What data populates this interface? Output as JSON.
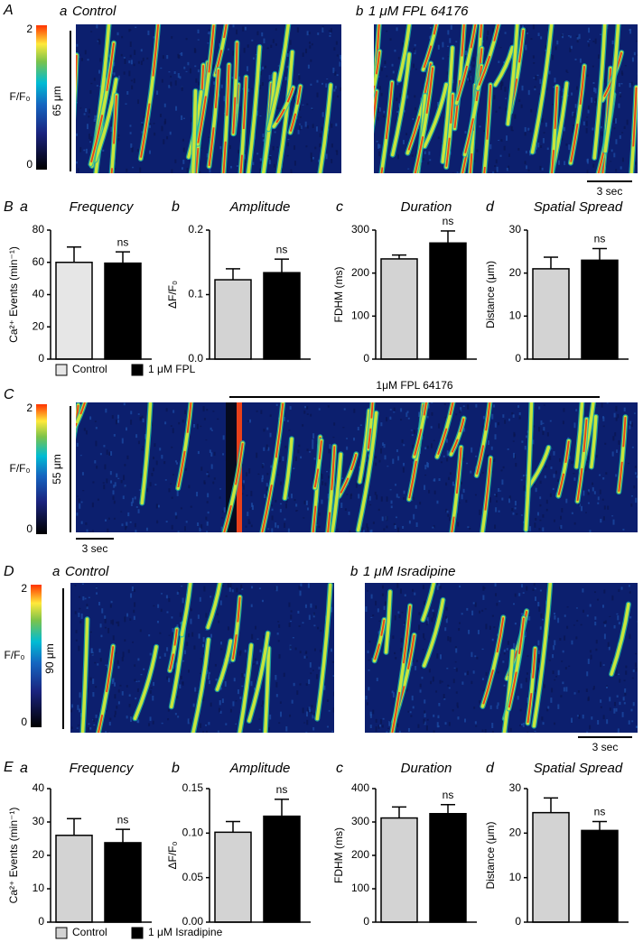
{
  "panels": {
    "A": {
      "label": "A",
      "images": [
        {
          "letter": "a",
          "title": "Control"
        },
        {
          "letter": "b",
          "title": "1 μM FPL 64176"
        }
      ],
      "colorbar": {
        "label": "F/F₀",
        "lim": [
          0,
          2
        ],
        "ticks": [
          0,
          2
        ]
      },
      "y_scale": "65 μm",
      "x_scale": "3 sec"
    },
    "B": {
      "label": "B"
    },
    "C": {
      "label": "C",
      "treatment": "1μM FPL 64176",
      "colorbar": {
        "label": "F/F₀",
        "lim": [
          0,
          2
        ],
        "ticks": [
          0,
          2
        ]
      },
      "y_scale": "55 μm",
      "x_scale": "3 sec"
    },
    "D": {
      "label": "D",
      "images": [
        {
          "letter": "a",
          "title": "Control"
        },
        {
          "letter": "b",
          "title": "1 μM Isradipine"
        }
      ],
      "colorbar": {
        "label": "F/F₀",
        "lim": [
          0,
          2
        ],
        "ticks": [
          0,
          2
        ]
      },
      "y_scale": "90 μm",
      "x_scale": "3 sec"
    },
    "E": {
      "label": "E"
    }
  },
  "chart_data": [
    {
      "type": "bar",
      "panel": "a",
      "title": "Frequency",
      "ylabel": "Ca²⁺ Events (min⁻¹)",
      "ylim": [
        0,
        80
      ],
      "yticks": [
        0,
        20,
        40,
        60,
        80
      ],
      "annotation": "ns",
      "series": [
        {
          "name": "Control",
          "color": "#e6e6e6",
          "values": [
            60
          ],
          "errors": [
            9.5
          ]
        },
        {
          "name": "1 μM FPL",
          "color": "#000000",
          "values": [
            59.5
          ],
          "errors": [
            7
          ]
        }
      ]
    },
    {
      "type": "bar",
      "panel": "b",
      "title": "Amplitude",
      "ylabel": "ΔF/F₀",
      "ylim": [
        0,
        0.2
      ],
      "yticks": [
        {
          "value": 0,
          "label": "0.0"
        },
        0.1,
        0.2
      ],
      "annotation": "ns",
      "series": [
        {
          "color": "#d3d3d3",
          "values": [
            0.123
          ],
          "errors": [
            0.017
          ]
        },
        {
          "color": "#000000",
          "values": [
            0.134
          ],
          "errors": [
            0.021
          ]
        }
      ]
    },
    {
      "type": "bar",
      "panel": "c",
      "title": "Duration",
      "ylabel": "FDHM (ms)",
      "ylim": [
        0,
        300
      ],
      "yticks": [
        0,
        100,
        200,
        300
      ],
      "annotation": "ns",
      "series": [
        {
          "color": "#d3d3d3",
          "values": [
            233
          ],
          "errors": [
            9
          ]
        },
        {
          "color": "#000000",
          "values": [
            270
          ],
          "errors": [
            28
          ]
        }
      ]
    },
    {
      "type": "bar",
      "panel": "d",
      "title": "Spatial Spread",
      "ylabel": "Distance (μm)",
      "ylim": [
        0,
        30
      ],
      "yticks": [
        0,
        10,
        20,
        30
      ],
      "annotation": "ns",
      "series": [
        {
          "color": "#d3d3d3",
          "values": [
            21
          ],
          "errors": [
            2.7
          ]
        },
        {
          "color": "#000000",
          "values": [
            23
          ],
          "errors": [
            2.7
          ]
        }
      ]
    },
    {
      "type": "bar",
      "panel": "a",
      "title": "Frequency",
      "ylabel": "Ca²⁺ Events (min⁻¹)",
      "ylim": [
        0,
        40
      ],
      "yticks": [
        0,
        10,
        20,
        30,
        40
      ],
      "annotation": "ns",
      "series": [
        {
          "name": "Control",
          "color": "#d3d3d3",
          "values": [
            26
          ],
          "errors": [
            5
          ]
        },
        {
          "name": "1 μM Isradipine",
          "color": "#000000",
          "values": [
            23.8
          ],
          "errors": [
            4
          ]
        }
      ]
    },
    {
      "type": "bar",
      "panel": "b",
      "title": "Amplitude",
      "ylabel": "ΔF/F₀",
      "ylim": [
        0,
        0.15
      ],
      "yticks": [
        {
          "value": 0,
          "label": "0.00"
        },
        0.05,
        {
          "value": 0.1,
          "label": "0.10"
        },
        0.15
      ],
      "annotation": "ns",
      "series": [
        {
          "color": "#d3d3d3",
          "values": [
            0.101
          ],
          "errors": [
            0.012
          ]
        },
        {
          "color": "#000000",
          "values": [
            0.119
          ],
          "errors": [
            0.019
          ]
        }
      ]
    },
    {
      "type": "bar",
      "panel": "c",
      "title": "Duration",
      "ylabel": "FDHM (ms)",
      "ylim": [
        0,
        400
      ],
      "yticks": [
        0,
        100,
        200,
        300,
        400
      ],
      "annotation": "ns",
      "series": [
        {
          "color": "#d3d3d3",
          "values": [
            312
          ],
          "errors": [
            33
          ]
        },
        {
          "color": "#000000",
          "values": [
            325
          ],
          "errors": [
            27
          ]
        }
      ]
    },
    {
      "type": "bar",
      "panel": "d",
      "title": "Spatial Spread",
      "ylabel": "Distance (μm)",
      "ylim": [
        0,
        30
      ],
      "yticks": [
        0,
        10,
        20,
        30
      ],
      "annotation": "ns",
      "series": [
        {
          "color": "#d3d3d3",
          "values": [
            24.6
          ],
          "errors": [
            3.3
          ]
        },
        {
          "color": "#000000",
          "values": [
            20.6
          ],
          "errors": [
            2
          ]
        }
      ]
    }
  ]
}
